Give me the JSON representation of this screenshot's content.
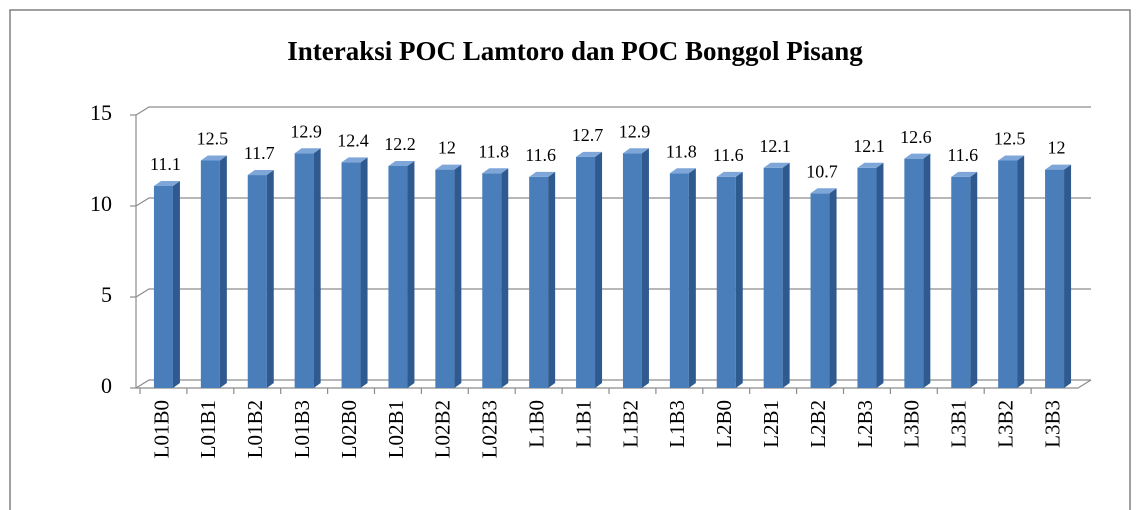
{
  "chart_data": {
    "type": "bar",
    "title": "Interaksi POC Lamtoro dan POC Bonggol Pisang",
    "categories": [
      "L01B0",
      "L01B1",
      "L01B2",
      "L01B3",
      "L02B0",
      "L02B1",
      "L02B2",
      "L02B3",
      "L1B0",
      "L1B1",
      "L1B2",
      "L1B3",
      "L2B0",
      "L2B1",
      "L2B2",
      "L2B3",
      "L3B0",
      "L3B1",
      "L3B2",
      "L3B3"
    ],
    "values": [
      11.1,
      12.5,
      11.7,
      12.9,
      12.4,
      12.2,
      12,
      11.8,
      11.6,
      12.7,
      12.9,
      11.8,
      11.6,
      12.1,
      10.7,
      12.1,
      12.6,
      11.6,
      12.5,
      12
    ],
    "color": "#4a7ebb",
    "ylim": [
      0,
      15
    ],
    "yticks": [
      0,
      5,
      10,
      15
    ],
    "grid": true
  }
}
